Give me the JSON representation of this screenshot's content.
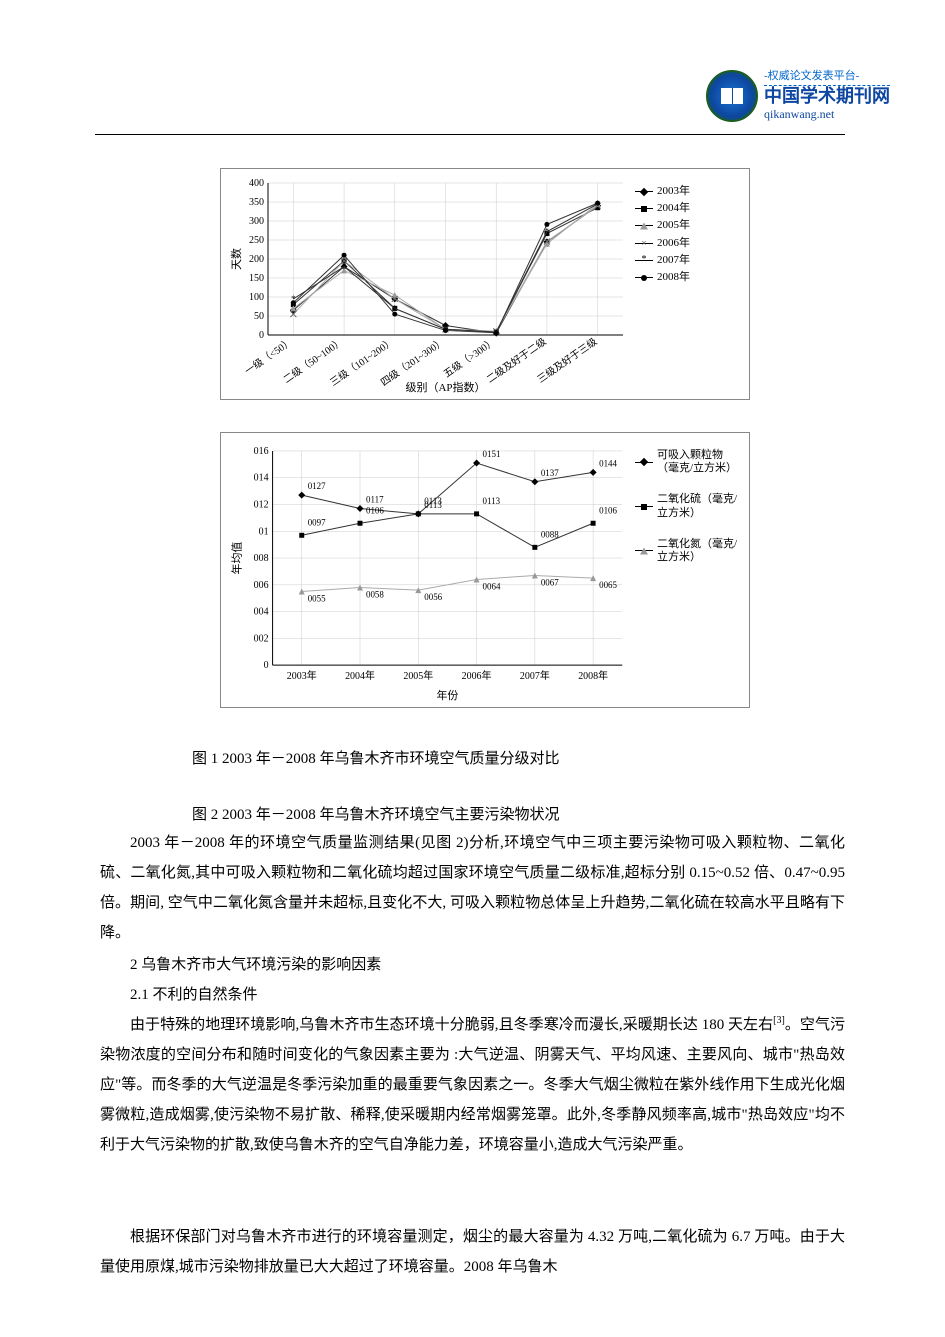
{
  "header": {
    "tag": "-权威论文发表平台-",
    "title": "中国学术期刊网",
    "url": "qikanwang.net"
  },
  "chart1": {
    "type": "line",
    "ylabel": "天数",
    "xlabel": "级别（AP指数）",
    "categories": [
      "一级（<50）",
      "二级（50~100）",
      "三级（101~200）",
      "四级（201~300）",
      "五级（>300）",
      "二级及好于二级",
      "三级及好于三级"
    ],
    "ylim": [
      0,
      400
    ],
    "ytick_step": 50,
    "yticks": [
      0,
      50,
      100,
      150,
      200,
      250,
      300,
      350,
      400
    ],
    "background_color": "#ffffff",
    "grid_color": "#cccccc",
    "series": [
      {
        "name": "2003年",
        "marker": "diamond",
        "color": "#000000",
        "values": [
          65,
          180,
          95,
          25,
          5,
          245,
          340
        ]
      },
      {
        "name": "2004年",
        "marker": "square",
        "color": "#000000",
        "values": [
          80,
          195,
          70,
          15,
          8,
          267,
          335
        ]
      },
      {
        "name": "2005年",
        "marker": "triangle",
        "color": "#999999",
        "values": [
          70,
          170,
          105,
          15,
          10,
          240,
          345
        ]
      },
      {
        "name": "2006年",
        "marker": "cross",
        "color": "#666666",
        "values": [
          55,
          195,
          95,
          15,
          10,
          246,
          340
        ]
      },
      {
        "name": "2007年",
        "marker": "star",
        "color": "#000000",
        "values": [
          95,
          180,
          70,
          15,
          8,
          272,
          345
        ]
      },
      {
        "name": "2008年",
        "marker": "circle",
        "color": "#000000",
        "values": [
          85,
          210,
          55,
          12,
          6,
          291,
          347
        ]
      }
    ]
  },
  "chart2": {
    "type": "line",
    "ylabel": "年均值",
    "xlabel": "年份",
    "categories": [
      "2003年",
      "2004年",
      "2005年",
      "2006年",
      "2007年",
      "2008年"
    ],
    "ylim": [
      0,
      0.16
    ],
    "ytick_step": 0.02,
    "yticks_labels": [
      "0",
      "0.02",
      "0.04",
      "0.06",
      "0.08",
      "0.1",
      "0.12",
      "0.14",
      "0.16"
    ],
    "yticks_display": [
      "0",
      "002",
      "004",
      "006",
      "008",
      "01",
      "012",
      "014",
      "016"
    ],
    "background_color": "#ffffff",
    "grid_color": "#cccccc",
    "series": [
      {
        "name": "可吸入颗粒物（毫克/立方米）",
        "marker": "diamond",
        "color": "#000000",
        "values": [
          0.127,
          0.117,
          0.113,
          0.151,
          0.137,
          0.144
        ],
        "labels": [
          "0127",
          "0117",
          "0113",
          "0151",
          "0137",
          "0144"
        ]
      },
      {
        "name": "二氧化硫（毫克/立方米）",
        "marker": "square",
        "color": "#000000",
        "values": [
          0.097,
          0.106,
          0.113,
          0.113,
          0.088,
          0.106
        ],
        "labels": [
          "0097",
          "0106",
          "0113",
          "0113",
          "0088",
          "0106"
        ]
      },
      {
        "name": "二氧化氮（毫克/立方米）",
        "marker": "triangle",
        "color": "#999999",
        "values": [
          0.055,
          0.058,
          0.056,
          0.064,
          0.067,
          0.065
        ],
        "labels": [
          "0055",
          "0058",
          "0056",
          "0064",
          "0067",
          "0065"
        ]
      }
    ]
  },
  "captions": {
    "fig1": "图 1 2003 年－2008 年乌鲁木齐市环境空气质量分级对比",
    "fig2": "图 2 2003 年－2008 年乌鲁木齐环境空气主要污染物状况"
  },
  "body": {
    "p1": "2003 年－2008 年的环境空气质量监测结果(见图 2)分析,环境空气中三项主要污染物可吸入颗粒物、二氧化硫、二氧化氮,其中可吸入颗粒物和二氧化硫均超过国家环境空气质量二级标准,超标分别 0.15~0.52 倍、0.47~0.95 倍。期间, 空气中二氧化氮含量并未超标,且变化不大, 可吸入颗粒物总体呈上升趋势,二氧化硫在较高水平且略有下降。",
    "h2": "2  乌鲁木齐市大气环境污染的影响因素",
    "h21": "2.1  不利的自然条件",
    "p2a": "由于特殊的地理环境影响,乌鲁木齐市生态环境十分脆弱,且冬季寒冷而漫长,采暖期长达 180 天左右",
    "p2ref": "[3]",
    "p2b": "。空气污染物浓度的空间分布和随时间变化的气象因素主要为 :大气逆温、阴雾天气、平均风速、主要风向、城市\"热岛效应\"等。而冬季的大气逆温是冬季污染加重的最重要气象因素之一。冬季大气烟尘微粒在紫外线作用下生成光化烟雾微粒,造成烟雾,使污染物不易扩散、稀释,使采暖期内经常烟雾笼罩。此外,冬季静风频率高,城市\"热岛效应\"均不利于大气污染物的扩散,致使乌鲁木齐的空气自净能力差，环境容量小,造成大气污染严重。",
    "p3": "根据环保部门对乌鲁木齐市进行的环境容量测定，烟尘的最大容量为 4.32 万吨,二氧化硫为 6.7 万吨。由于大量使用原煤,城市污染物排放量已大大超过了环境容量。2008 年乌鲁木"
  }
}
